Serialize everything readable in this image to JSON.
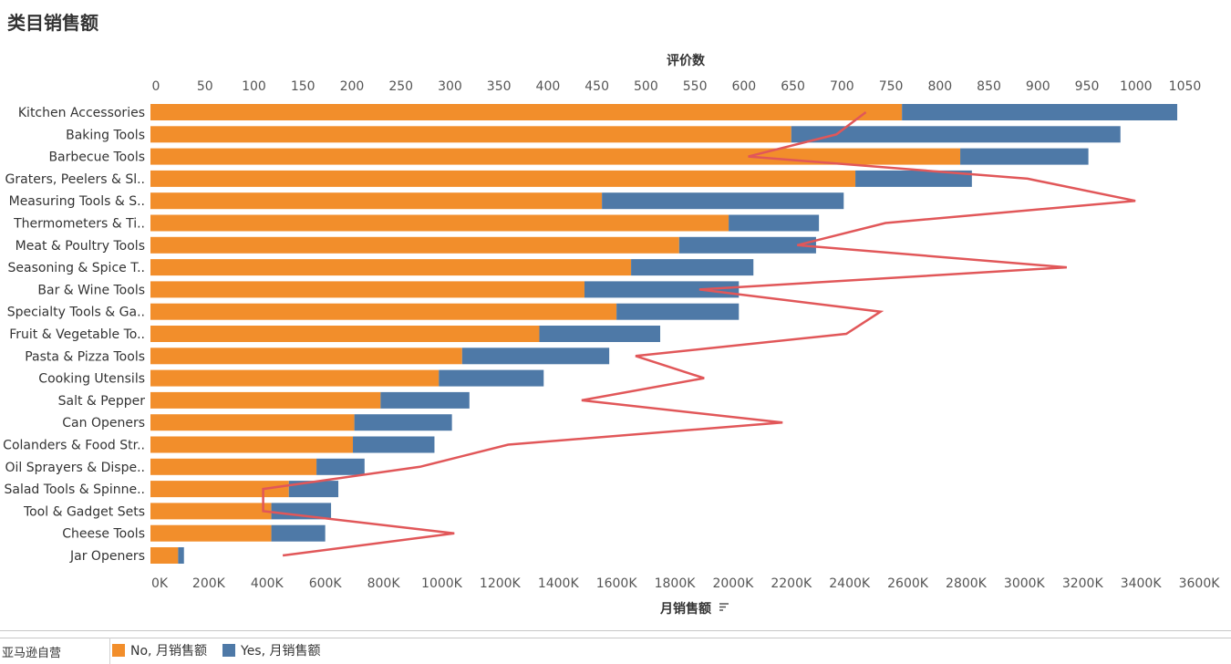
{
  "title": "类目销售额",
  "legend": {
    "field_label": "亚马逊自营",
    "items": [
      {
        "label": "No, 月销售额",
        "color": "#f28e2b"
      },
      {
        "label": "Yes, 月销售额",
        "color": "#4e79a7"
      }
    ]
  },
  "chart_data": {
    "type": "bar",
    "orientation": "horizontal",
    "stacked": true,
    "categories": [
      "Kitchen Accessories",
      "Baking Tools",
      "Barbecue Tools",
      "Graters, Peelers & Sl..",
      "Measuring Tools & S..",
      "Thermometers & Ti..",
      "Meat & Poultry Tools",
      "Seasoning & Spice T..",
      "Bar & Wine Tools",
      "Specialty Tools & Ga..",
      "Fruit & Vegetable To..",
      "Pasta & Pizza Tools",
      "Cooking Utensils",
      "Salt & Pepper",
      "Can Openers",
      "Colanders & Food Str..",
      "Oil Sprayers & Dispe..",
      "Salad Tools & Spinne..",
      "Tool & Gadget Sets",
      "Cheese Tools",
      "Jar Openers"
    ],
    "series": [
      {
        "name": "No, 月销售额",
        "color": "#f28e2b",
        "values": [
          2580000,
          2200000,
          2780000,
          2420000,
          1550000,
          1985000,
          1815000,
          1650000,
          1490000,
          1600000,
          1335000,
          1070000,
          990000,
          790000,
          700000,
          695000,
          570000,
          475000,
          415000,
          415000,
          95000
        ]
      },
      {
        "name": "Yes, 月销售额",
        "color": "#4e79a7",
        "values": [
          945000,
          1130000,
          440000,
          400000,
          830000,
          310000,
          470000,
          420000,
          530000,
          420000,
          415000,
          505000,
          360000,
          305000,
          335000,
          280000,
          165000,
          170000,
          205000,
          185000,
          20000
        ]
      }
    ],
    "line": {
      "name": "评价数",
      "color": "#e15759",
      "values": [
        730,
        700,
        610,
        895,
        1005,
        750,
        660,
        935,
        560,
        745,
        710,
        495,
        565,
        440,
        645,
        365,
        275,
        115,
        115,
        310,
        135
      ]
    },
    "xaxis_bottom": {
      "label": "月销售额",
      "lim": [
        0,
        3600000
      ],
      "ticks": [
        "0K",
        "200K",
        "400K",
        "600K",
        "800K",
        "1000K",
        "1200K",
        "1400K",
        "1600K",
        "1800K",
        "2000K",
        "2200K",
        "2400K",
        "2600K",
        "2800K",
        "3000K",
        "3200K",
        "3400K",
        "3600K"
      ]
    },
    "xaxis_top": {
      "label": "评价数",
      "lim": [
        0,
        1070
      ],
      "ticks": [
        "0",
        "50",
        "100",
        "150",
        "200",
        "250",
        "300",
        "350",
        "400",
        "450",
        "500",
        "550",
        "600",
        "650",
        "700",
        "750",
        "800",
        "850",
        "900",
        "950",
        "1000",
        "1050"
      ]
    },
    "grid": false
  }
}
